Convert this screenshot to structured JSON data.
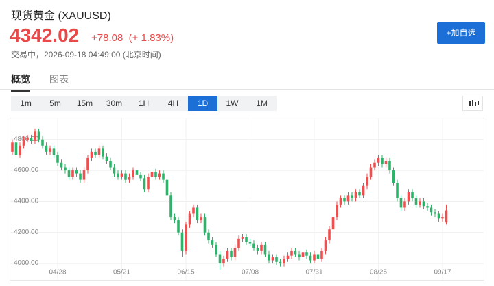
{
  "header": {
    "title": "现货黄金 (XAUUSD)",
    "price": "4342.02",
    "change": "+78.08",
    "change_pct": "(+ 1.83%)",
    "status": "交易中，2026-09-18 04:49:00 (北京时间)",
    "watch_button": "+加自选"
  },
  "tabs": [
    "概览",
    "图表"
  ],
  "intervals": [
    "1m",
    "5m",
    "15m",
    "30m",
    "1H",
    "4H",
    "1D",
    "1W",
    "1M"
  ],
  "active_interval": "1D",
  "chart_data": {
    "type": "candlestick",
    "categories": [
      null,
      null,
      null,
      null,
      null,
      null,
      null,
      null,
      null,
      null,
      null,
      null,
      "04/28",
      null,
      null,
      null,
      null,
      null,
      null,
      null,
      null,
      null,
      null,
      null,
      null,
      null,
      null,
      null,
      null,
      "05/21",
      null,
      null,
      null,
      null,
      null,
      null,
      null,
      null,
      null,
      null,
      null,
      null,
      null,
      null,
      null,
      null,
      "06/15",
      null,
      null,
      null,
      null,
      null,
      null,
      null,
      null,
      null,
      null,
      null,
      null,
      null,
      null,
      null,
      null,
      "07/08",
      null,
      null,
      null,
      null,
      null,
      null,
      null,
      null,
      null,
      null,
      null,
      null,
      null,
      null,
      null,
      null,
      "07/31",
      null,
      null,
      null,
      null,
      null,
      null,
      null,
      null,
      null,
      null,
      null,
      null,
      null,
      null,
      null,
      null,
      "08/25",
      null,
      null,
      null,
      null,
      null,
      null,
      null,
      null,
      null,
      null,
      null,
      null,
      null,
      null,
      null,
      null,
      "09/17",
      null
    ],
    "open": [
      4720,
      4780,
      4700,
      4760,
      4800,
      4810,
      4790,
      4850,
      4800,
      4760,
      4720,
      4740,
      4700,
      4650,
      4620,
      4600,
      4560,
      4600,
      4580,
      4540,
      4600,
      4680,
      4720,
      4700,
      4740,
      4690,
      4660,
      4620,
      4580,
      4560,
      4580,
      4540,
      4560,
      4600,
      4570,
      4550,
      4480,
      4560,
      4590,
      4560,
      4580,
      4540,
      4440,
      4300,
      4280,
      4200,
      4080,
      4250,
      4320,
      4360,
      4280,
      4300,
      4200,
      4150,
      4120,
      4060,
      4000,
      4030,
      4080,
      4040,
      4100,
      4160,
      4170,
      4140,
      4130,
      4100,
      4080,
      4120,
      4060,
      4020,
      4040,
      4010,
      4000,
      4030,
      4050,
      4080,
      4060,
      4040,
      4070,
      4050,
      4020,
      4060,
      4030,
      4080,
      4150,
      4220,
      4300,
      4380,
      4420,
      4400,
      4440,
      4420,
      4460,
      4440,
      4500,
      4560,
      4620,
      4650,
      4680,
      4640,
      4660,
      4600,
      4520,
      4420,
      4360,
      4400,
      4460,
      4420,
      4380,
      4400,
      4370,
      4360,
      4330,
      4320,
      4290,
      4263.94
    ],
    "high": [
      4800,
      4800,
      4780,
      4820,
      4830,
      4830,
      4870,
      4870,
      4820,
      4780,
      4760,
      4760,
      4720,
      4670,
      4640,
      4620,
      4620,
      4620,
      4600,
      4620,
      4700,
      4740,
      4740,
      4760,
      4760,
      4710,
      4680,
      4640,
      4600,
      4600,
      4600,
      4580,
      4620,
      4620,
      4590,
      4570,
      4580,
      4610,
      4610,
      4600,
      4600,
      4560,
      4460,
      4320,
      4300,
      4220,
      4270,
      4340,
      4380,
      4380,
      4320,
      4320,
      4220,
      4170,
      4140,
      4080,
      4050,
      4100,
      4100,
      4120,
      4180,
      4190,
      4190,
      4160,
      4150,
      4120,
      4140,
      4140,
      4080,
      4060,
      4060,
      4030,
      4050,
      4070,
      4100,
      4100,
      4080,
      4090,
      4090,
      4070,
      4080,
      4080,
      4100,
      4170,
      4240,
      4320,
      4400,
      4440,
      4440,
      4460,
      4460,
      4480,
      4480,
      4520,
      4580,
      4640,
      4670,
      4700,
      4700,
      4680,
      4680,
      4620,
      4540,
      4440,
      4420,
      4480,
      4480,
      4440,
      4420,
      4420,
      4390,
      4380,
      4350,
      4340,
      4320,
      4380
    ],
    "low": [
      4700,
      4680,
      4680,
      4740,
      4780,
      4770,
      4770,
      4780,
      4740,
      4700,
      4700,
      4680,
      4630,
      4600,
      4580,
      4540,
      4540,
      4560,
      4520,
      4520,
      4580,
      4660,
      4680,
      4680,
      4670,
      4640,
      4600,
      4560,
      4540,
      4540,
      4520,
      4520,
      4540,
      4550,
      4530,
      4460,
      4460,
      4540,
      4540,
      4540,
      4520,
      4420,
      4280,
      4260,
      4180,
      4040,
      4060,
      4230,
      4300,
      4260,
      4260,
      4180,
      4130,
      4100,
      4040,
      3960,
      3980,
      4010,
      4020,
      4020,
      4080,
      4140,
      4120,
      4110,
      4080,
      4060,
      4060,
      4040,
      4000,
      4000,
      3990,
      3980,
      3980,
      4010,
      4030,
      4040,
      4020,
      4020,
      4030,
      4000,
      4000,
      4010,
      4010,
      4060,
      4130,
      4200,
      4280,
      4360,
      4380,
      4380,
      4400,
      4400,
      4420,
      4420,
      4480,
      4540,
      4600,
      4630,
      4620,
      4620,
      4580,
      4500,
      4400,
      4340,
      4340,
      4380,
      4400,
      4360,
      4360,
      4350,
      4340,
      4310,
      4300,
      4270,
      4270,
      4250
    ],
    "close": [
      4780,
      4700,
      4760,
      4800,
      4810,
      4790,
      4850,
      4800,
      4760,
      4720,
      4740,
      4700,
      4650,
      4620,
      4600,
      4560,
      4600,
      4580,
      4540,
      4600,
      4680,
      4720,
      4700,
      4740,
      4690,
      4660,
      4620,
      4580,
      4560,
      4580,
      4540,
      4560,
      4600,
      4570,
      4550,
      4480,
      4560,
      4590,
      4560,
      4580,
      4540,
      4440,
      4300,
      4280,
      4200,
      4080,
      4250,
      4320,
      4360,
      4280,
      4300,
      4200,
      4150,
      4120,
      4060,
      4000,
      4030,
      4080,
      4040,
      4100,
      4160,
      4170,
      4140,
      4130,
      4100,
      4080,
      4120,
      4060,
      4020,
      4040,
      4010,
      4000,
      4030,
      4050,
      4080,
      4060,
      4040,
      4070,
      4050,
      4020,
      4060,
      4030,
      4080,
      4150,
      4220,
      4300,
      4380,
      4420,
      4400,
      4440,
      4420,
      4460,
      4440,
      4500,
      4560,
      4620,
      4650,
      4680,
      4640,
      4660,
      4600,
      4520,
      4420,
      4360,
      4400,
      4460,
      4420,
      4380,
      4400,
      4370,
      4360,
      4330,
      4320,
      4290,
      4300,
      4342.02
    ],
    "up_color": "#ef4f4f",
    "down_color": "#2fb36a",
    "ylim": [
      3890,
      4940
    ],
    "yticks": [
      {
        "value": 4000,
        "label": "4000.00"
      },
      {
        "value": 4200,
        "label": "4200.00"
      },
      {
        "value": 4400,
        "label": "4400.00"
      },
      {
        "value": 4600,
        "label": "4600.00"
      },
      {
        "value": 4800,
        "label": "4800.00"
      }
    ],
    "grid": true
  }
}
